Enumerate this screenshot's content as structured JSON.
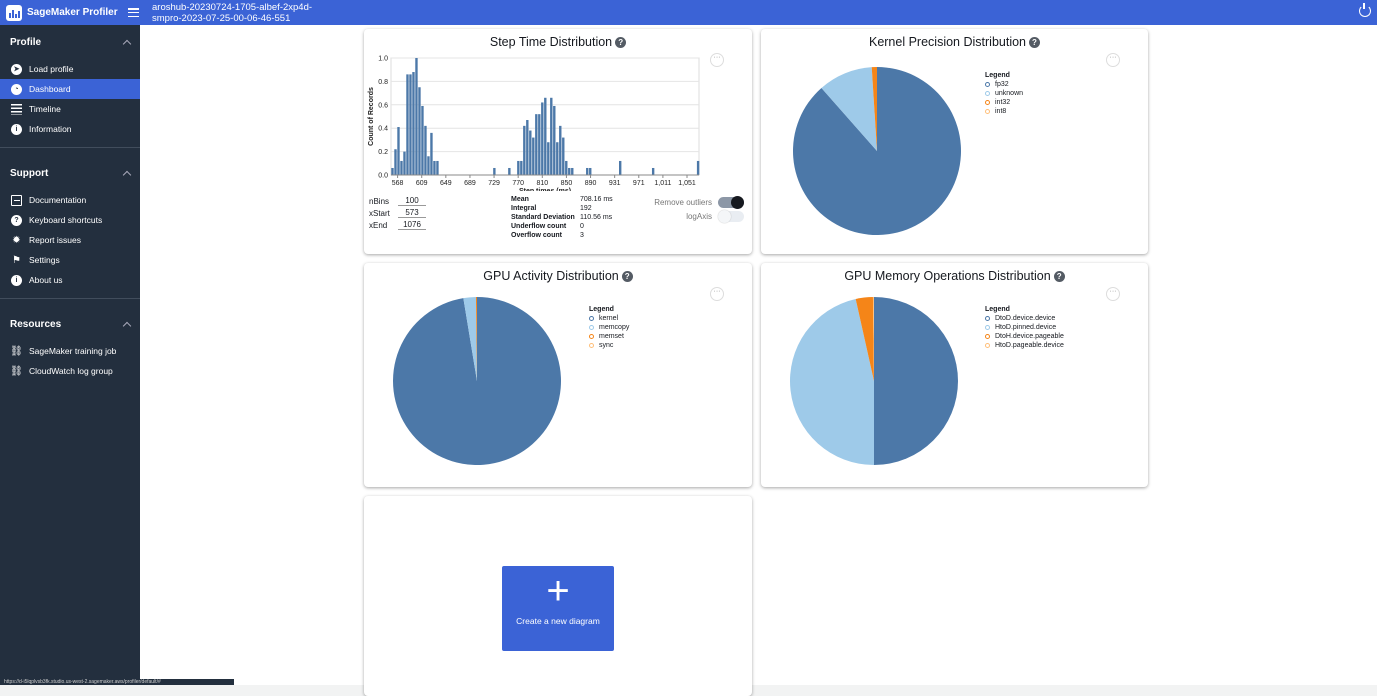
{
  "app": {
    "name": "SageMaker Profiler",
    "job_title_line1": "aroshub-20230724-1705-albef-2xp4d-",
    "job_title_line2": "smpro-2023-07-25-00-06-46-551",
    "status_url": "https://d-i5lqplvsb3fk.studio.us-west-2.sagemaker.aws/profiler/default/#"
  },
  "sidebar": {
    "profile": {
      "title": "Profile",
      "items": [
        {
          "label": "Load profile",
          "icon": "compass-icon"
        },
        {
          "label": "Dashboard",
          "icon": "gauge-icon"
        },
        {
          "label": "Timeline",
          "icon": "table-icon"
        },
        {
          "label": "Information",
          "icon": "info-icon"
        }
      ]
    },
    "support": {
      "title": "Support",
      "items": [
        {
          "label": "Documentation",
          "icon": "document-icon"
        },
        {
          "label": "Keyboard shortcuts",
          "icon": "question-icon"
        },
        {
          "label": "Report issues",
          "icon": "bug-icon"
        },
        {
          "label": "Settings",
          "icon": "settings-icon"
        },
        {
          "label": "About us",
          "icon": "info-icon"
        }
      ]
    },
    "resources": {
      "title": "Resources",
      "items": [
        {
          "label": "SageMaker training job",
          "icon": "external-link-icon"
        },
        {
          "label": "CloudWatch log group",
          "icon": "external-link-icon"
        }
      ]
    }
  },
  "step_time": {
    "title": "Step Time Distribution",
    "params": {
      "nbins_label": "nBins",
      "nbins": "100",
      "xstart_label": "xStart",
      "xstart": "573",
      "xend_label": "xEnd",
      "xend": "1076"
    },
    "stats": [
      {
        "k": "Mean",
        "v": "708.16 ms"
      },
      {
        "k": "Integral",
        "v": "192"
      },
      {
        "k": "Standard Deviation",
        "v": "110.56 ms"
      },
      {
        "k": "Underflow count",
        "v": "0"
      },
      {
        "k": "Overflow count",
        "v": "3"
      }
    ],
    "remove_outliers": "Remove outliers",
    "log_axis": "logAxis"
  },
  "kernel_precision": {
    "title": "Kernel Precision Distribution",
    "legend_title": "Legend",
    "legend": [
      "fp32",
      "unknown",
      "int32",
      "int8"
    ]
  },
  "gpu_activity": {
    "title": "GPU Activity Distribution",
    "legend_title": "Legend",
    "legend": [
      "kernel",
      "memcopy",
      "memset",
      "sync"
    ]
  },
  "gpu_memory": {
    "title": "GPU Memory Operations Distribution",
    "legend_title": "Legend",
    "legend": [
      "DtoD.device.device",
      "HtoD.pinned.device",
      "DtoH.device.pageable",
      "HtoD.pageable.device"
    ]
  },
  "new_diagram": {
    "label": "Create a new diagram"
  },
  "colors": {
    "c1": "#4c78a8",
    "c2": "#9ecae9",
    "c3": "#f58518",
    "c4": "#ffbf79"
  },
  "chart_data": [
    {
      "type": "bar",
      "title": "Step Time Distribution",
      "xlabel": "Step times (ms)",
      "ylabel": "Count of Records",
      "ylim": [
        0,
        1.0
      ],
      "xlim": [
        557,
        1071
      ],
      "x_ticks": [
        "568",
        "609",
        "649",
        "689",
        "729",
        "770",
        "810",
        "850",
        "890",
        "931",
        "971",
        "1,011",
        "1,051"
      ],
      "y_ticks": [
        "0.0",
        "0.2",
        "0.4",
        "0.6",
        "0.8",
        "1.0"
      ],
      "x": [
        557,
        562,
        567,
        572,
        577,
        582,
        587,
        592,
        597,
        602,
        607,
        612,
        617,
        622,
        627,
        632,
        637,
        642,
        647,
        652,
        657,
        662,
        667,
        672,
        677,
        682,
        687,
        692,
        697,
        702,
        707,
        712,
        717,
        722,
        727,
        732,
        737,
        742,
        747,
        752,
        757,
        762,
        767,
        772,
        777,
        782,
        787,
        792,
        797,
        802,
        807,
        812,
        817,
        822,
        827,
        832,
        837,
        842,
        847,
        852,
        857,
        862,
        867,
        872,
        877,
        882,
        887,
        892,
        897,
        902,
        907,
        912,
        917,
        922,
        927,
        932,
        937,
        942,
        947,
        952,
        957,
        962,
        967,
        972,
        977,
        982,
        987,
        992,
        997,
        1002,
        1007,
        1012,
        1017,
        1022,
        1027,
        1032,
        1037,
        1042,
        1047,
        1052,
        1057,
        1062,
        1067
      ],
      "values": [
        0.06,
        0.22,
        0.41,
        0.12,
        0.2,
        0.86,
        0.86,
        0.88,
        1.0,
        0.75,
        0.59,
        0.42,
        0.16,
        0.36,
        0.12,
        0.12,
        0,
        0,
        0,
        0,
        0,
        0,
        0,
        0,
        0,
        0,
        0,
        0,
        0,
        0,
        0,
        0,
        0,
        0,
        0.06,
        0,
        0,
        0,
        0,
        0.06,
        0,
        0,
        0.12,
        0.12,
        0.42,
        0.47,
        0.38,
        0.32,
        0.52,
        0.52,
        0.62,
        0.66,
        0.28,
        0.66,
        0.59,
        0.28,
        0.42,
        0.32,
        0.12,
        0.06,
        0.06,
        0,
        0,
        0,
        0,
        0.06,
        0.06,
        0,
        0,
        0,
        0,
        0,
        0,
        0,
        0,
        0,
        0.12,
        0,
        0,
        0,
        0,
        0,
        0,
        0,
        0,
        0,
        0,
        0.06,
        0,
        0,
        0,
        0,
        0,
        0,
        0,
        0,
        0,
        0,
        0,
        0,
        0,
        0,
        0.12
      ]
    },
    {
      "type": "pie",
      "title": "Kernel Precision Distribution",
      "categories": [
        "fp32",
        "unknown",
        "int32",
        "int8"
      ],
      "values": [
        88.5,
        10.5,
        1.0,
        0
      ]
    },
    {
      "type": "pie",
      "title": "GPU Activity Distribution",
      "categories": [
        "kernel",
        "memcopy",
        "memset",
        "sync"
      ],
      "values": [
        97.4,
        2.4,
        0.2,
        0
      ]
    },
    {
      "type": "pie",
      "title": "GPU Memory Operations Distribution",
      "categories": [
        "DtoD.device.device",
        "HtoD.pinned.device",
        "DtoH.device.pageable",
        "HtoD.pageable.device"
      ],
      "values": [
        50.0,
        46.5,
        3.3,
        0.2
      ]
    }
  ]
}
